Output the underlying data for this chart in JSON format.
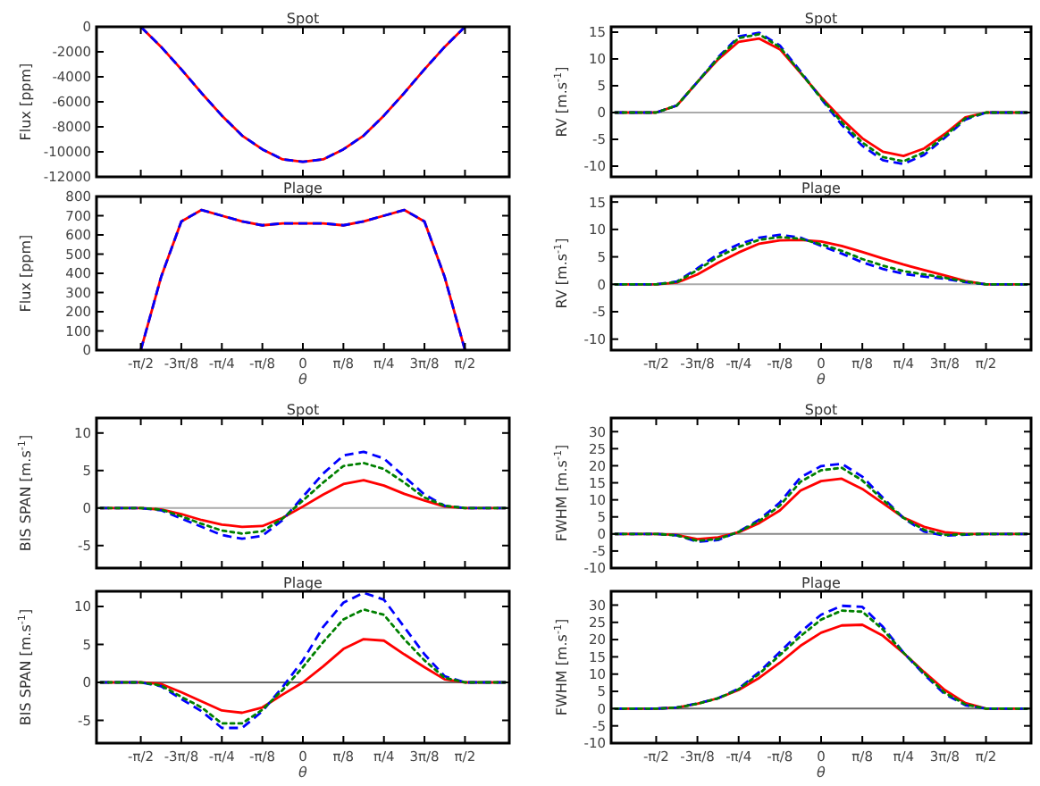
{
  "chart_data": [
    {
      "type": "line",
      "title": "Spot",
      "ylabel": "Flux [ppm]",
      "tick_labels": "y",
      "xlim": [
        -2.0,
        2.0
      ],
      "ylim": [
        -12000,
        0
      ],
      "yticks": [
        -12000,
        -10000,
        -8000,
        -6000,
        -4000,
        -2000,
        0
      ],
      "xticks": [
        {
          "value": -1.5708,
          "label": null
        },
        {
          "value": -1.1781,
          "label": null
        },
        {
          "value": -0.7854,
          "label": null
        },
        {
          "value": -0.3927,
          "label": null
        },
        {
          "value": 0,
          "label": null
        },
        {
          "value": 0.3927,
          "label": null
        },
        {
          "value": 0.7854,
          "label": null
        },
        {
          "value": 1.1781,
          "label": null
        },
        {
          "value": 1.5708,
          "label": null
        }
      ],
      "x": [
        -1.5708,
        -1.3744,
        -1.1781,
        -0.9817,
        -0.7854,
        -0.589,
        -0.3927,
        -0.1963,
        0,
        0.1963,
        0.3927,
        0.589,
        0.7854,
        0.9817,
        1.1781,
        1.3744,
        1.5708
      ],
      "series": [
        {
          "color": "#ff0000",
          "line_style": "solid",
          "values": [
            0,
            -1600,
            -3400,
            -5300,
            -7100,
            -8700,
            -9800,
            -10600,
            -10800,
            -10600,
            -9800,
            -8700,
            -7100,
            -5300,
            -3400,
            -1600,
            0
          ]
        },
        {
          "color": "#0000ff",
          "line_style": "dashed",
          "values": [
            0,
            -1600,
            -3400,
            -5300,
            -7100,
            -8700,
            -9800,
            -10600,
            -10800,
            -10600,
            -9800,
            -8700,
            -7100,
            -5300,
            -3400,
            -1600,
            0
          ]
        }
      ]
    },
    {
      "type": "line",
      "title": "Spot",
      "ylabel": "RV [m.s$^{-1}$]",
      "tick_labels": "y",
      "xlim": [
        -2.0,
        2.0
      ],
      "ylim": [
        -12,
        16
      ],
      "yticks": [
        -10,
        -5,
        0,
        5,
        10,
        15
      ],
      "xticks": [
        {
          "value": -1.5708,
          "label": null
        },
        {
          "value": -1.1781,
          "label": null
        },
        {
          "value": -0.7854,
          "label": null
        },
        {
          "value": -0.3927,
          "label": null
        },
        {
          "value": 0,
          "label": null
        },
        {
          "value": 0.3927,
          "label": null
        },
        {
          "value": 0.7854,
          "label": null
        },
        {
          "value": 1.1781,
          "label": null
        },
        {
          "value": 1.5708,
          "label": null
        }
      ],
      "ref_lines": [
        {
          "axis": "y",
          "value": 0,
          "color": "#aaaaaa"
        }
      ],
      "x": [
        -1.9635,
        -1.7671,
        -1.5708,
        -1.3744,
        -1.1781,
        -0.9817,
        -0.7854,
        -0.589,
        -0.3927,
        -0.1963,
        0,
        0.1963,
        0.3927,
        0.589,
        0.7854,
        0.9817,
        1.1781,
        1.3744,
        1.5708,
        1.7671,
        1.9635
      ],
      "series": [
        {
          "color": "#ff0000",
          "line_style": "solid",
          "values": [
            0,
            0,
            0,
            1.3,
            5.7,
            9.9,
            13.2,
            13.8,
            11.8,
            7.4,
            2.9,
            -1.2,
            -4.8,
            -7.3,
            -8.1,
            -6.7,
            -4.0,
            -0.9,
            0,
            0,
            0
          ]
        },
        {
          "color": "#008000",
          "line_style": "dotted",
          "values": [
            0,
            0,
            0,
            1.3,
            5.7,
            10.1,
            13.9,
            14.6,
            12.2,
            7.5,
            2.7,
            -1.8,
            -5.6,
            -8.3,
            -9.1,
            -7.4,
            -4.4,
            -1.1,
            0,
            0,
            0
          ]
        },
        {
          "color": "#0000ff",
          "line_style": "dashed",
          "values": [
            0,
            0,
            0,
            1.3,
            5.7,
            10.3,
            14.2,
            14.9,
            12.5,
            7.7,
            2.6,
            -2.3,
            -6.2,
            -8.9,
            -9.6,
            -7.9,
            -4.7,
            -1.3,
            0,
            0,
            0
          ]
        }
      ]
    },
    {
      "type": "line",
      "title": "Plage",
      "ylabel": "Flux [ppm]",
      "xlabel": "θ",
      "xlim": [
        -2.0,
        2.0
      ],
      "ylim": [
        0,
        800
      ],
      "yticks": [
        0,
        100,
        200,
        300,
        400,
        500,
        600,
        700,
        800
      ],
      "xticks": [
        {
          "value": -1.5708,
          "label": "-π/2"
        },
        {
          "value": -1.1781,
          "label": "-3π/8"
        },
        {
          "value": -0.7854,
          "label": "-π/4"
        },
        {
          "value": -0.3927,
          "label": "-π/8"
        },
        {
          "value": 0,
          "label": "0"
        },
        {
          "value": 0.3927,
          "label": "π/8"
        },
        {
          "value": 0.7854,
          "label": "π/4"
        },
        {
          "value": 1.1781,
          "label": "3π/8"
        },
        {
          "value": 1.5708,
          "label": "π/2"
        }
      ],
      "x": [
        -1.5708,
        -1.3744,
        -1.1781,
        -0.9817,
        -0.7854,
        -0.589,
        -0.3927,
        -0.1963,
        0,
        0.1963,
        0.3927,
        0.589,
        0.7854,
        0.9817,
        1.1781,
        1.3744,
        1.5708
      ],
      "series": [
        {
          "color": "#ff0000",
          "line_style": "solid",
          "values": [
            0,
            380,
            670,
            730,
            700,
            670,
            650,
            660,
            660,
            660,
            650,
            670,
            700,
            730,
            670,
            380,
            0
          ]
        },
        {
          "color": "#0000ff",
          "line_style": "dashed",
          "values": [
            0,
            380,
            670,
            730,
            700,
            670,
            650,
            660,
            660,
            660,
            650,
            670,
            700,
            730,
            670,
            380,
            0
          ]
        }
      ]
    },
    {
      "type": "line",
      "title": "Plage",
      "ylabel": "RV [m.s$^{-1}$]",
      "xlabel": "θ",
      "xlim": [
        -2.0,
        2.0
      ],
      "ylim": [
        -12,
        16
      ],
      "yticks": [
        -10,
        -5,
        0,
        5,
        10,
        15
      ],
      "xticks": [
        {
          "value": -1.5708,
          "label": "-π/2"
        },
        {
          "value": -1.1781,
          "label": "-3π/8"
        },
        {
          "value": -0.7854,
          "label": "-π/4"
        },
        {
          "value": -0.3927,
          "label": "-π/8"
        },
        {
          "value": 0,
          "label": "0"
        },
        {
          "value": 0.3927,
          "label": "π/8"
        },
        {
          "value": 0.7854,
          "label": "π/4"
        },
        {
          "value": 1.1781,
          "label": "3π/8"
        },
        {
          "value": 1.5708,
          "label": "π/2"
        }
      ],
      "ref_lines": [
        {
          "axis": "y",
          "value": 0,
          "color": "#aaaaaa"
        }
      ],
      "x": [
        -1.9635,
        -1.7671,
        -1.5708,
        -1.3744,
        -1.1781,
        -0.9817,
        -0.7854,
        -0.589,
        -0.3927,
        -0.1963,
        0,
        0.1963,
        0.3927,
        0.589,
        0.7854,
        0.9817,
        1.1781,
        1.3744,
        1.5708,
        1.7671,
        1.9635
      ],
      "series": [
        {
          "color": "#ff0000",
          "line_style": "solid",
          "values": [
            0,
            0,
            0,
            0.3,
            1.8,
            3.9,
            5.8,
            7.4,
            8.0,
            8.1,
            7.8,
            7.0,
            5.9,
            4.7,
            3.6,
            2.6,
            1.6,
            0.6,
            0,
            0,
            0
          ]
        },
        {
          "color": "#008000",
          "line_style": "dotted",
          "values": [
            0,
            0,
            0,
            0.4,
            2.6,
            5.0,
            6.8,
            8.1,
            8.6,
            8.3,
            7.3,
            6.1,
            4.6,
            3.4,
            2.4,
            1.8,
            1.2,
            0.5,
            0,
            0,
            0
          ]
        },
        {
          "color": "#0000ff",
          "line_style": "dashed",
          "values": [
            0,
            0,
            0,
            0.5,
            2.9,
            5.5,
            7.3,
            8.5,
            9.0,
            8.5,
            7.0,
            5.6,
            4.0,
            2.8,
            1.9,
            1.4,
            1.0,
            0.4,
            0,
            0,
            0
          ]
        }
      ]
    },
    {
      "type": "line",
      "title": "Spot",
      "ylabel": "BIS SPAN [m.s$^{-1}$]",
      "tick_labels": "y",
      "xlim": [
        -2.0,
        2.0
      ],
      "ylim": [
        -8,
        12
      ],
      "yticks": [
        -5,
        0,
        5,
        10
      ],
      "xticks": [
        {
          "value": -1.5708,
          "label": null
        },
        {
          "value": -1.1781,
          "label": null
        },
        {
          "value": -0.7854,
          "label": null
        },
        {
          "value": -0.3927,
          "label": null
        },
        {
          "value": 0,
          "label": null
        },
        {
          "value": 0.3927,
          "label": null
        },
        {
          "value": 0.7854,
          "label": null
        },
        {
          "value": 1.1781,
          "label": null
        },
        {
          "value": 1.5708,
          "label": null
        }
      ],
      "ref_lines": [
        {
          "axis": "y",
          "value": 0,
          "color": "#aaaaaa"
        }
      ],
      "x": [
        -1.9635,
        -1.7671,
        -1.5708,
        -1.3744,
        -1.1781,
        -0.9817,
        -0.7854,
        -0.589,
        -0.3927,
        -0.1963,
        0,
        0.1963,
        0.3927,
        0.589,
        0.7854,
        0.9817,
        1.1781,
        1.3744,
        1.5708,
        1.7671,
        1.9635
      ],
      "series": [
        {
          "color": "#ff0000",
          "line_style": "solid",
          "values": [
            0,
            0,
            0,
            -0.2,
            -0.8,
            -1.6,
            -2.2,
            -2.5,
            -2.4,
            -1.3,
            0.2,
            1.8,
            3.2,
            3.7,
            3.0,
            1.9,
            1.0,
            0.2,
            0,
            0,
            0
          ]
        },
        {
          "color": "#008000",
          "line_style": "dotted",
          "values": [
            0,
            0,
            0,
            -0.2,
            -1.1,
            -2.1,
            -3.0,
            -3.4,
            -3.1,
            -1.4,
            1.0,
            3.4,
            5.6,
            6.0,
            5.2,
            3.4,
            1.4,
            0.3,
            0,
            0,
            0
          ]
        },
        {
          "color": "#0000ff",
          "line_style": "dashed",
          "values": [
            0,
            0,
            0,
            -0.3,
            -1.4,
            -2.5,
            -3.6,
            -4.1,
            -3.7,
            -1.6,
            1.5,
            4.6,
            7.0,
            7.5,
            6.6,
            4.2,
            1.8,
            0.3,
            0,
            0,
            0
          ]
        }
      ]
    },
    {
      "type": "line",
      "title": "Spot",
      "ylabel": "FWHM [m.s$^{-1}$]",
      "tick_labels": "y",
      "xlim": [
        -2.0,
        2.0
      ],
      "ylim": [
        -10,
        34
      ],
      "yticks": [
        -10,
        -5,
        0,
        5,
        10,
        15,
        20,
        25,
        30
      ],
      "xticks": [
        {
          "value": -1.5708,
          "label": null
        },
        {
          "value": -1.1781,
          "label": null
        },
        {
          "value": -0.7854,
          "label": null
        },
        {
          "value": -0.3927,
          "label": null
        },
        {
          "value": 0,
          "label": null
        },
        {
          "value": 0.3927,
          "label": null
        },
        {
          "value": 0.7854,
          "label": null
        },
        {
          "value": 1.1781,
          "label": null
        },
        {
          "value": 1.5708,
          "label": null
        }
      ],
      "ref_lines": [
        {
          "axis": "y",
          "value": 0,
          "color": "#888888"
        }
      ],
      "x": [
        -1.9635,
        -1.7671,
        -1.5708,
        -1.3744,
        -1.1781,
        -0.9817,
        -0.7854,
        -0.589,
        -0.3927,
        -0.1963,
        0,
        0.1963,
        0.3927,
        0.589,
        0.7854,
        0.9817,
        1.1781,
        1.3744,
        1.5708,
        1.7671,
        1.9635
      ],
      "series": [
        {
          "color": "#ff0000",
          "line_style": "solid",
          "values": [
            0,
            0,
            0,
            -0.3,
            -1.5,
            -1.0,
            0.5,
            3.2,
            6.9,
            12.7,
            15.5,
            16.2,
            13.2,
            9.0,
            4.8,
            2.1,
            0.5,
            0,
            0,
            0,
            0
          ]
        },
        {
          "color": "#008000",
          "line_style": "dotted",
          "values": [
            0,
            0,
            0,
            -0.4,
            -2.0,
            -1.5,
            0.6,
            3.8,
            8.3,
            15.3,
            18.7,
            19.4,
            15.7,
            10.0,
            4.7,
            1.2,
            -0.3,
            -0.1,
            0,
            0,
            0
          ]
        },
        {
          "color": "#0000ff",
          "line_style": "dashed",
          "values": [
            0,
            0,
            0,
            -0.4,
            -2.3,
            -1.8,
            0.7,
            4.2,
            9.2,
            16.6,
            19.9,
            20.6,
            16.8,
            10.6,
            4.6,
            0.7,
            -0.5,
            -0.2,
            0,
            0,
            0
          ]
        }
      ]
    },
    {
      "type": "line",
      "title": "Plage",
      "ylabel": "BIS SPAN [m.s$^{-1}$]",
      "xlabel": "θ",
      "xlim": [
        -2.0,
        2.0
      ],
      "ylim": [
        -8,
        12
      ],
      "yticks": [
        -5,
        0,
        5,
        10
      ],
      "xticks": [
        {
          "value": -1.5708,
          "label": "-π/2"
        },
        {
          "value": -1.1781,
          "label": "-3π/8"
        },
        {
          "value": -0.7854,
          "label": "-π/4"
        },
        {
          "value": -0.3927,
          "label": "-π/8"
        },
        {
          "value": 0,
          "label": "0"
        },
        {
          "value": 0.3927,
          "label": "π/8"
        },
        {
          "value": 0.7854,
          "label": "π/4"
        },
        {
          "value": 1.1781,
          "label": "3π/8"
        },
        {
          "value": 1.5708,
          "label": "π/2"
        }
      ],
      "ref_lines": [
        {
          "axis": "y",
          "value": 0,
          "color": "#666666"
        }
      ],
      "x": [
        -1.9635,
        -1.7671,
        -1.5708,
        -1.3744,
        -1.1781,
        -0.9817,
        -0.7854,
        -0.589,
        -0.3927,
        -0.1963,
        0,
        0.1963,
        0.3927,
        0.589,
        0.7854,
        0.9817,
        1.1781,
        1.3744,
        1.5708,
        1.7671,
        1.9635
      ],
      "series": [
        {
          "color": "#ff0000",
          "line_style": "solid",
          "values": [
            0,
            0,
            0,
            -0.2,
            -1.3,
            -2.5,
            -3.7,
            -4.0,
            -3.3,
            -1.6,
            0,
            2.1,
            4.4,
            5.7,
            5.5,
            3.7,
            2.0,
            0.4,
            0,
            0,
            0
          ]
        },
        {
          "color": "#008000",
          "line_style": "dotted",
          "values": [
            0,
            0,
            0,
            -0.4,
            -1.9,
            -3.3,
            -5.4,
            -5.4,
            -3.6,
            -1.0,
            2.0,
            5.3,
            8.3,
            9.6,
            8.9,
            5.7,
            2.9,
            0.6,
            0,
            0,
            0
          ]
        },
        {
          "color": "#0000ff",
          "line_style": "dashed",
          "values": [
            0,
            0,
            0,
            -0.5,
            -2.2,
            -3.8,
            -6.0,
            -6.0,
            -3.8,
            -0.6,
            2.9,
            7.3,
            10.5,
            11.8,
            10.9,
            7.3,
            3.7,
            0.8,
            0,
            0,
            0
          ]
        }
      ]
    },
    {
      "type": "line",
      "title": "Plage",
      "ylabel": "FWHM [m.s$^{-1}$]",
      "xlabel": "θ",
      "xlim": [
        -2.0,
        2.0
      ],
      "ylim": [
        -10,
        34
      ],
      "yticks": [
        -10,
        -5,
        0,
        5,
        10,
        15,
        20,
        25,
        30
      ],
      "xticks": [
        {
          "value": -1.5708,
          "label": "-π/2"
        },
        {
          "value": -1.1781,
          "label": "-3π/8"
        },
        {
          "value": -0.7854,
          "label": "-π/4"
        },
        {
          "value": -0.3927,
          "label": "-π/8"
        },
        {
          "value": 0,
          "label": "0"
        },
        {
          "value": 0.3927,
          "label": "π/8"
        },
        {
          "value": 0.7854,
          "label": "π/4"
        },
        {
          "value": 1.1781,
          "label": "3π/8"
        },
        {
          "value": 1.5708,
          "label": "π/2"
        }
      ],
      "ref_lines": [
        {
          "axis": "y",
          "value": 0,
          "color": "#666666"
        }
      ],
      "x": [
        -1.9635,
        -1.7671,
        -1.5708,
        -1.3744,
        -1.1781,
        -0.9817,
        -0.7854,
        -0.589,
        -0.3927,
        -0.1963,
        0,
        0.1963,
        0.3927,
        0.589,
        0.7854,
        0.9817,
        1.1781,
        1.3744,
        1.5708,
        1.7671,
        1.9635
      ],
      "series": [
        {
          "color": "#ff0000",
          "line_style": "solid",
          "values": [
            0,
            0,
            0,
            0.3,
            1.4,
            3.0,
            5.4,
            8.9,
            13.3,
            18.2,
            22.0,
            24.1,
            24.3,
            21.1,
            16.1,
            10.6,
            5.4,
            1.6,
            0,
            0,
            0
          ]
        },
        {
          "color": "#008000",
          "line_style": "dotted",
          "values": [
            0,
            0,
            0,
            0.3,
            1.4,
            3.0,
            5.6,
            10.1,
            15.5,
            21.0,
            25.8,
            28.4,
            28.1,
            22.9,
            16.2,
            10.2,
            4.6,
            1.2,
            0,
            0,
            0
          ]
        },
        {
          "color": "#0000ff",
          "line_style": "dashed",
          "values": [
            0,
            0,
            0,
            0.3,
            1.5,
            3.0,
            5.8,
            10.6,
            16.4,
            22.2,
            27.2,
            29.8,
            29.5,
            23.7,
            16.2,
            9.9,
            4.2,
            1.0,
            0,
            0,
            0
          ]
        }
      ]
    }
  ]
}
